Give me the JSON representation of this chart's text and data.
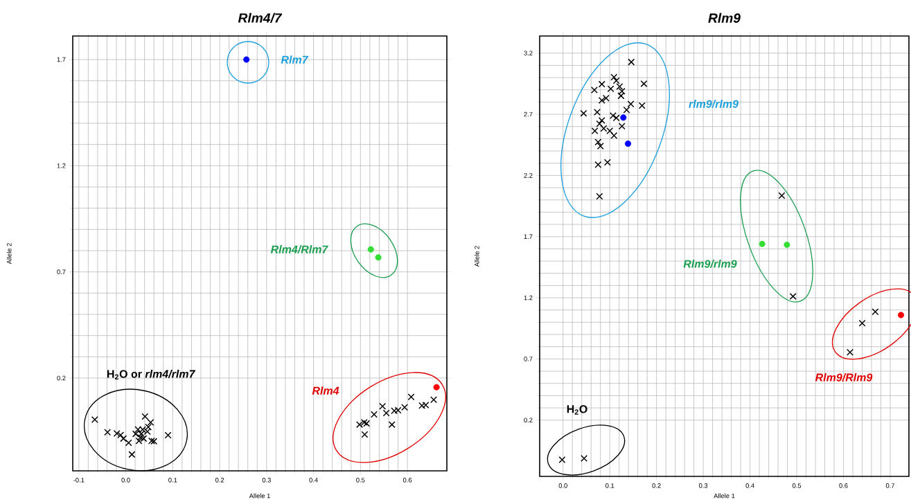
{
  "chart_data": [
    {
      "type": "scatter",
      "title": "Rlm4/7",
      "xlabel": "Allele 1",
      "ylabel": "Allele 2",
      "xlim": [
        -0.113,
        0.684
      ],
      "ylim": [
        -0.237,
        1.811
      ],
      "xticks": [
        -0.1,
        {
          "value": 0,
          "label": "0.0"
        },
        0.1,
        0.2,
        0.3,
        0.4,
        0.5,
        0.6
      ],
      "yticks": [
        0.2,
        0.7,
        1.2,
        1.7
      ],
      "grid": true,
      "series": [
        {
          "color": "#000000",
          "marker": "cross",
          "x": [
            -0.066,
            -0.039,
            -0.019,
            -0.011,
            -0.005,
            0.006,
            0.013,
            0.041,
            0.053,
            0.06,
            0.09,
            0.026,
            0.036,
            0.046,
            0.031,
            0.038,
            0.021,
            0.048,
            0.028,
            0.033,
            0.055,
            0.498,
            0.508,
            0.513,
            0.509,
            0.529,
            0.547,
            0.555,
            0.567,
            0.572,
            0.58,
            0.594,
            0.608,
            0.631,
            0.639,
            0.656
          ],
          "values": [
            0.004,
            -0.055,
            -0.061,
            -0.068,
            -0.085,
            -0.105,
            -0.16,
            0.019,
            -0.009,
            -0.098,
            -0.069,
            -0.042,
            -0.042,
            -0.052,
            -0.08,
            -0.085,
            -0.063,
            -0.031,
            -0.096,
            -0.063,
            -0.096,
            -0.019,
            -0.009,
            -0.014,
            -0.066,
            0.029,
            0.067,
            0.035,
            -0.019,
            0.046,
            0.048,
            0.062,
            0.111,
            0.07,
            0.073,
            0.098
          ]
        },
        {
          "color": "#0000ff",
          "marker": "circle",
          "x": [
            0.257
          ],
          "values": [
            1.7
          ]
        },
        {
          "color": "#33dd33",
          "marker": "circle",
          "x": [
            0.522,
            0.538
          ],
          "values": [
            0.806,
            0.768
          ]
        },
        {
          "color": "#ff0000",
          "marker": "circle",
          "x": [
            0.662
          ],
          "values": [
            0.157
          ]
        }
      ],
      "annotations": [
        "Rlm7",
        "Rlm4/Rlm7",
        "Rlm4",
        "H$_{2}$O or *rlm4/rlm7*"
      ]
    },
    {
      "type": "scatter",
      "title": "Rlm9",
      "xlabel": "Allele 1",
      "ylabel": "Allele 2",
      "xlim": [
        -0.05,
        0.74
      ],
      "ylim": [
        -0.26,
        3.34
      ],
      "xticks": [
        {
          "value": 0,
          "label": "0.0"
        },
        0.1,
        0.2,
        0.3,
        0.4,
        0.5,
        0.6,
        0.7
      ],
      "yticks": [
        0.2,
        0.7,
        1.2,
        1.7,
        2.2,
        2.7,
        3.2
      ],
      "grid": true,
      "series": [
        {
          "color": "#000000",
          "marker": "cross",
          "x": [
            0.146,
            0.173,
            0.169,
            0.044,
            0.078,
            0.075,
            0.095,
            0.075,
            0.08,
            0.067,
            0.083,
            0.109,
            0.114,
            0.121,
            0.126,
            0.083,
            0.092,
            0.102,
            0.124,
            0.145,
            0.107,
            0.114,
            0.073,
            0.078,
            0.087,
            0.1,
            0.109,
            0.126,
            0.136,
            0.068,
            0.083,
            0.468,
            0.492,
            0.614,
            0.64,
            0.668,
            -0.002,
            0.045
          ],
          "values": [
            3.127,
            2.95,
            2.771,
            2.708,
            2.03,
            2.288,
            2.307,
            2.473,
            2.44,
            2.898,
            2.946,
            3.003,
            2.975,
            2.927,
            2.889,
            2.813,
            2.832,
            2.908,
            2.851,
            2.784,
            2.689,
            2.67,
            2.717,
            2.622,
            2.584,
            2.564,
            2.526,
            2.603,
            2.736,
            2.564,
            2.65,
            2.035,
            1.211,
            0.754,
            0.992,
            1.086,
            -0.124,
            -0.113
          ]
        },
        {
          "color": "#0000ff",
          "marker": "circle",
          "x": [
            0.129,
            0.139
          ],
          "values": [
            2.673,
            2.46
          ]
        },
        {
          "color": "#33dd33",
          "marker": "circle",
          "x": [
            0.426,
            0.479
          ],
          "values": [
            1.64,
            1.633
          ]
        },
        {
          "color": "#ff0000",
          "marker": "circle",
          "x": [
            0.723
          ],
          "values": [
            1.059
          ]
        }
      ],
      "annotations": [
        "rlm9/rlm9",
        "Rlm9/rlm9",
        "Rlm9/Rlm9",
        "H$_{2}$O"
      ]
    }
  ]
}
